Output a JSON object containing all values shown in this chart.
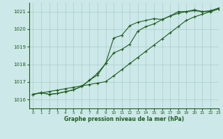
{
  "title": "Graphe pression niveau de la mer (hPa)",
  "bg_color": "#cce8e8",
  "line_color": "#1e5c1e",
  "grid_color": "#aacece",
  "xlim": [
    -0.5,
    23
  ],
  "ylim": [
    1015.5,
    1021.5
  ],
  "yticks": [
    1016,
    1017,
    1018,
    1019,
    1020,
    1021
  ],
  "xticks": [
    0,
    1,
    2,
    3,
    4,
    5,
    6,
    7,
    8,
    9,
    10,
    11,
    12,
    13,
    14,
    15,
    16,
    17,
    18,
    19,
    20,
    21,
    22,
    23
  ],
  "series1_x": [
    0,
    1,
    2,
    3,
    4,
    5,
    6,
    7,
    8,
    9,
    10,
    11,
    12,
    13,
    14,
    15,
    16,
    17,
    18,
    19,
    20,
    21,
    22,
    23
  ],
  "series1_y": [
    1016.3,
    1016.4,
    1016.3,
    1016.35,
    1016.45,
    1016.55,
    1016.75,
    1017.1,
    1017.5,
    1018.05,
    1019.5,
    1019.65,
    1020.2,
    1020.4,
    1020.5,
    1020.6,
    1020.55,
    1020.75,
    1021.0,
    1021.0,
    1021.1,
    1021.0,
    1021.05,
    1021.2
  ],
  "series2_x": [
    0,
    1,
    2,
    3,
    4,
    5,
    6,
    7,
    8,
    9,
    10,
    11,
    12,
    13,
    14,
    15,
    16,
    17,
    18,
    19,
    20,
    21,
    22,
    23
  ],
  "series2_y": [
    1016.3,
    1016.4,
    1016.3,
    1016.35,
    1016.45,
    1016.55,
    1016.75,
    1017.1,
    1017.4,
    1018.05,
    1018.65,
    1018.85,
    1019.15,
    1019.9,
    1020.15,
    1020.3,
    1020.55,
    1020.75,
    1020.9,
    1021.0,
    1021.05,
    1021.0,
    1021.0,
    1021.15
  ],
  "series3_x": [
    0,
    1,
    2,
    3,
    4,
    5,
    6,
    7,
    8,
    9,
    10,
    11,
    12,
    13,
    14,
    15,
    16,
    17,
    18,
    19,
    20,
    21,
    22,
    23
  ],
  "series3_y": [
    1016.3,
    1016.38,
    1016.46,
    1016.54,
    1016.62,
    1016.7,
    1016.78,
    1016.86,
    1016.94,
    1017.02,
    1017.35,
    1017.7,
    1018.05,
    1018.4,
    1018.75,
    1019.1,
    1019.45,
    1019.8,
    1020.15,
    1020.5,
    1020.7,
    1020.85,
    1021.0,
    1021.15
  ]
}
